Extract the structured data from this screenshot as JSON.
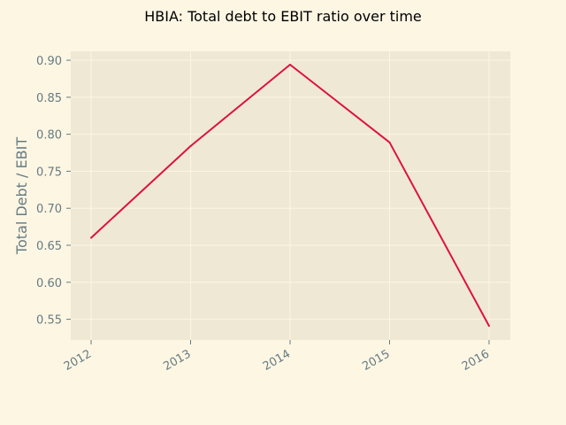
{
  "chart_data": {
    "type": "line",
    "title": "HBIA: Total debt to EBIT ratio over time",
    "xlabel": "",
    "ylabel": "Total Debt / EBIT",
    "x": [
      "2012",
      "2013",
      "2014",
      "2015",
      "2016"
    ],
    "series": [
      {
        "values": [
          0.66,
          0.784,
          0.894,
          0.789,
          0.541
        ]
      }
    ],
    "ylim": [
      0.522,
      0.912
    ],
    "yticks": [
      "0.55",
      "0.60",
      "0.65",
      "0.70",
      "0.75",
      "0.80",
      "0.85",
      "0.90"
    ],
    "grid": true,
    "colors": {
      "figure_bg": "#fdf6e3",
      "plot_bg": "#eee8d5",
      "line": "#dc143c",
      "tick_text": "#657b83"
    }
  }
}
